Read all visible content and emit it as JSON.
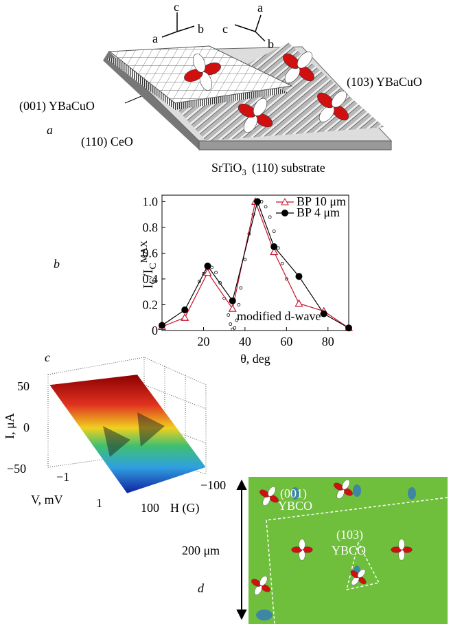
{
  "panel_a": {
    "label": "a",
    "triad_left": {
      "c": "c",
      "a": "a",
      "b": "b"
    },
    "triad_right": {
      "a": "a",
      "c": "c",
      "b": "b"
    },
    "film_001": "(001) YBaCuO",
    "film_103": "(103) YBaCuO",
    "buffer": "(110) CeO",
    "substrate": {
      "formula": "SrTiO",
      "subscript": "3",
      "rest": "(110) substrate"
    }
  },
  "chart_data": {
    "type": "line",
    "panel_label": "b",
    "ylabel": [
      "I",
      "C",
      "/I",
      "C",
      "MAX"
    ],
    "xlabel": "θ, deg",
    "xlim": [
      0,
      90
    ],
    "ylim": [
      0,
      1.05
    ],
    "xticks": [
      20,
      40,
      60,
      80
    ],
    "yticks": [
      0,
      0.2,
      0.4,
      0.6,
      0.8,
      {
        "value": 1,
        "label": "1.0"
      }
    ],
    "series": [
      {
        "name": "BP 10 μm",
        "color": "#c8102e",
        "marker": "triangle",
        "x": [
          0,
          11,
          22,
          34,
          45,
          54,
          66,
          78,
          90
        ],
        "values": [
          0.03,
          0.1,
          0.45,
          0.17,
          1.0,
          0.61,
          0.21,
          0.15,
          0.02
        ]
      },
      {
        "name": "BP 4 μm",
        "color": "#000000",
        "marker": "circle",
        "x": [
          0,
          11,
          22,
          34,
          46,
          54,
          66,
          78,
          90
        ],
        "values": [
          0.04,
          0.16,
          0.5,
          0.23,
          1.0,
          0.65,
          0.42,
          0.13,
          0.02
        ]
      }
    ],
    "model": {
      "annotation": "modified d-wave",
      "x": [
        18,
        20,
        22,
        24,
        26,
        28,
        30,
        32,
        33,
        34,
        35,
        36,
        37,
        38,
        40,
        42,
        44,
        46,
        48,
        50,
        52,
        54,
        56,
        58,
        60
      ],
      "values": [
        0.38,
        0.44,
        0.48,
        0.49,
        0.45,
        0.37,
        0.25,
        0.12,
        0.05,
        0.01,
        0.02,
        0.08,
        0.2,
        0.33,
        0.55,
        0.75,
        0.9,
        0.98,
        1.0,
        0.96,
        0.88,
        0.77,
        0.64,
        0.52,
        0.4
      ]
    }
  },
  "panel_c": {
    "label": "c",
    "z_label": "I, μA",
    "z_ticks": [
      "50",
      "0",
      "−50"
    ],
    "v_label": "V, mV",
    "v_ticks": [
      "−1",
      "1"
    ],
    "h_label": "H (G)",
    "h_ticks": [
      "100",
      "−100"
    ]
  },
  "panel_d": {
    "label": "d",
    "scale": "200 μm",
    "region_001": [
      "(001)",
      "YBCO"
    ],
    "region_103": [
      "(103)",
      "YBCO"
    ]
  }
}
